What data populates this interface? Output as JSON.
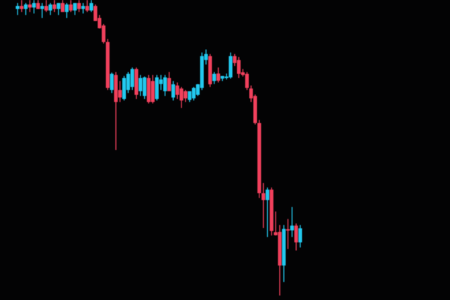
{
  "chart_data": {
    "type": "candlestick",
    "title": "",
    "xlabel": "",
    "ylabel": "",
    "ylim": [
      0,
      100
    ],
    "grid": false,
    "colors": {
      "up": "#22c8ee",
      "down": "#f0405c",
      "background": "#030304"
    },
    "ohlc": [
      [
        97,
        99,
        95,
        98
      ],
      [
        98,
        100,
        96,
        97
      ],
      [
        97,
        99,
        95,
        98.5
      ],
      [
        98.5,
        100,
        96,
        97.5
      ],
      [
        97.5,
        100,
        95.5,
        99
      ],
      [
        99,
        100,
        97,
        97
      ],
      [
        97,
        99,
        94,
        98
      ],
      [
        98,
        100,
        96,
        96.5
      ],
      [
        96.5,
        99,
        95,
        98.5
      ],
      [
        98.5,
        100,
        96,
        97
      ],
      [
        97,
        99,
        95,
        99
      ],
      [
        99,
        100,
        96,
        96
      ],
      [
        96,
        99,
        94,
        98.5
      ],
      [
        98.5,
        100,
        96,
        96.5
      ],
      [
        96.5,
        99,
        95,
        99
      ],
      [
        99,
        100,
        96,
        97
      ],
      [
        97,
        99,
        95.5,
        98
      ],
      [
        98,
        100,
        96,
        96.5
      ],
      [
        96.5,
        100,
        96,
        99
      ],
      [
        98,
        98.5,
        93,
        93
      ],
      [
        94,
        95,
        90.5,
        90.6
      ],
      [
        91.5,
        92,
        85.5,
        86
      ],
      [
        86,
        87,
        70,
        70.7
      ],
      [
        70,
        75.8,
        69,
        75.4
      ],
      [
        75,
        76,
        50,
        66
      ],
      [
        70,
        73,
        66,
        67.5
      ],
      [
        67,
        74.7,
        66.5,
        74
      ],
      [
        70,
        76,
        69,
        75.4
      ],
      [
        71,
        77.5,
        70,
        77
      ],
      [
        77,
        77.5,
        67,
        68.4
      ],
      [
        69.6,
        75,
        68,
        74
      ],
      [
        68,
        74.5,
        67,
        74.2
      ],
      [
        74,
        75,
        65.5,
        66
      ],
      [
        73,
        75,
        65.5,
        66
      ],
      [
        67,
        75,
        66.5,
        74.2
      ],
      [
        72,
        75,
        70,
        73.5
      ],
      [
        69.6,
        75,
        68,
        74.2
      ],
      [
        74,
        76,
        70,
        69.6
      ],
      [
        67.5,
        73,
        66.5,
        71.9
      ],
      [
        71.5,
        72.5,
        67,
        68.4
      ],
      [
        70.5,
        71,
        64,
        66.5
      ],
      [
        69.6,
        70,
        66,
        67.2
      ],
      [
        66.7,
        69,
        66,
        69.6
      ],
      [
        67.2,
        71,
        66.5,
        70.7
      ],
      [
        68.4,
        72,
        68,
        71.9
      ],
      [
        70.7,
        82.5,
        70,
        81.3
      ],
      [
        80,
        83.5,
        78.5,
        82
      ],
      [
        81.3,
        82,
        71,
        71.9
      ],
      [
        73,
        76,
        72,
        75.4
      ],
      [
        75.5,
        77.5,
        72.5,
        73.1
      ],
      [
        73.8,
        74.7,
        73,
        74.7
      ],
      [
        74,
        75.5,
        73.5,
        74.5
      ],
      [
        74.2,
        82.5,
        73.8,
        81.3
      ],
      [
        81.3,
        82,
        78,
        79
      ],
      [
        80,
        81,
        74,
        75.4
      ],
      [
        75.9,
        77,
        74.5,
        75
      ],
      [
        75.4,
        76,
        70,
        70.7
      ],
      [
        70.5,
        71.5,
        66,
        67.2
      ],
      [
        68,
        68.5,
        58.5,
        59
      ],
      [
        59,
        60,
        34,
        35.6
      ],
      [
        35.6,
        39,
        24,
        33.3
      ],
      [
        33.3,
        37.5,
        21,
        36.8
      ],
      [
        36.8,
        37.5,
        21.5,
        23
      ],
      [
        22.6,
        29.5,
        21.5,
        21.6
      ],
      [
        22.7,
        25,
        1.5,
        11.5
      ],
      [
        11.5,
        25,
        6,
        23.7
      ],
      [
        23.6,
        27,
        17,
        23.4
      ],
      [
        23.2,
        31,
        21,
        24.8
      ],
      [
        24.8,
        25.5,
        16.5,
        19.2
      ],
      [
        19.2,
        25,
        17.5,
        23.9
      ]
    ]
  }
}
